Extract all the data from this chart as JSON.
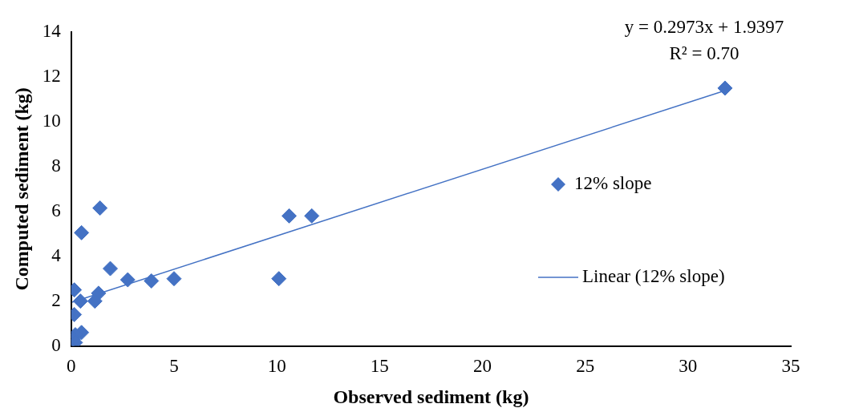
{
  "chart_data": {
    "type": "scatter",
    "xlabel": "Observed sediment (kg)",
    "ylabel": "Computed sediment (kg)",
    "xlim": [
      0,
      35
    ],
    "xticks": [
      0,
      5,
      10,
      15,
      20,
      25,
      30,
      35
    ],
    "ylim": [
      0,
      14
    ],
    "yticks": [
      0,
      2,
      4,
      6,
      8,
      10,
      12,
      14
    ],
    "grid": false,
    "legend": "right",
    "marker": "diamond",
    "annotations": [
      "y = 0.2973x + 1.9397",
      "R² = 0.70"
    ],
    "series": [
      {
        "name": "12% slope",
        "color": "#4472c4",
        "x": [
          1.4,
          0.5,
          1.9,
          2.75,
          3.9,
          5.0,
          0.15,
          1.33,
          0.45,
          1.15,
          0.15,
          0.5,
          0.2,
          0.1,
          0.2,
          10.6,
          11.7,
          10.1,
          31.8
        ],
        "values": [
          6.15,
          5.05,
          3.45,
          2.95,
          2.9,
          3.0,
          2.5,
          2.35,
          2.0,
          2.0,
          1.4,
          0.6,
          0.5,
          0.3,
          0.15,
          5.8,
          5.8,
          3.0,
          11.5
        ]
      },
      {
        "name": "Linear (12% slope)",
        "type": "line",
        "color": "#4472c4",
        "x": [
          0.05,
          31.8
        ],
        "values": [
          1.95,
          11.39
        ],
        "marker": "none",
        "line_style": "solid"
      }
    ]
  }
}
